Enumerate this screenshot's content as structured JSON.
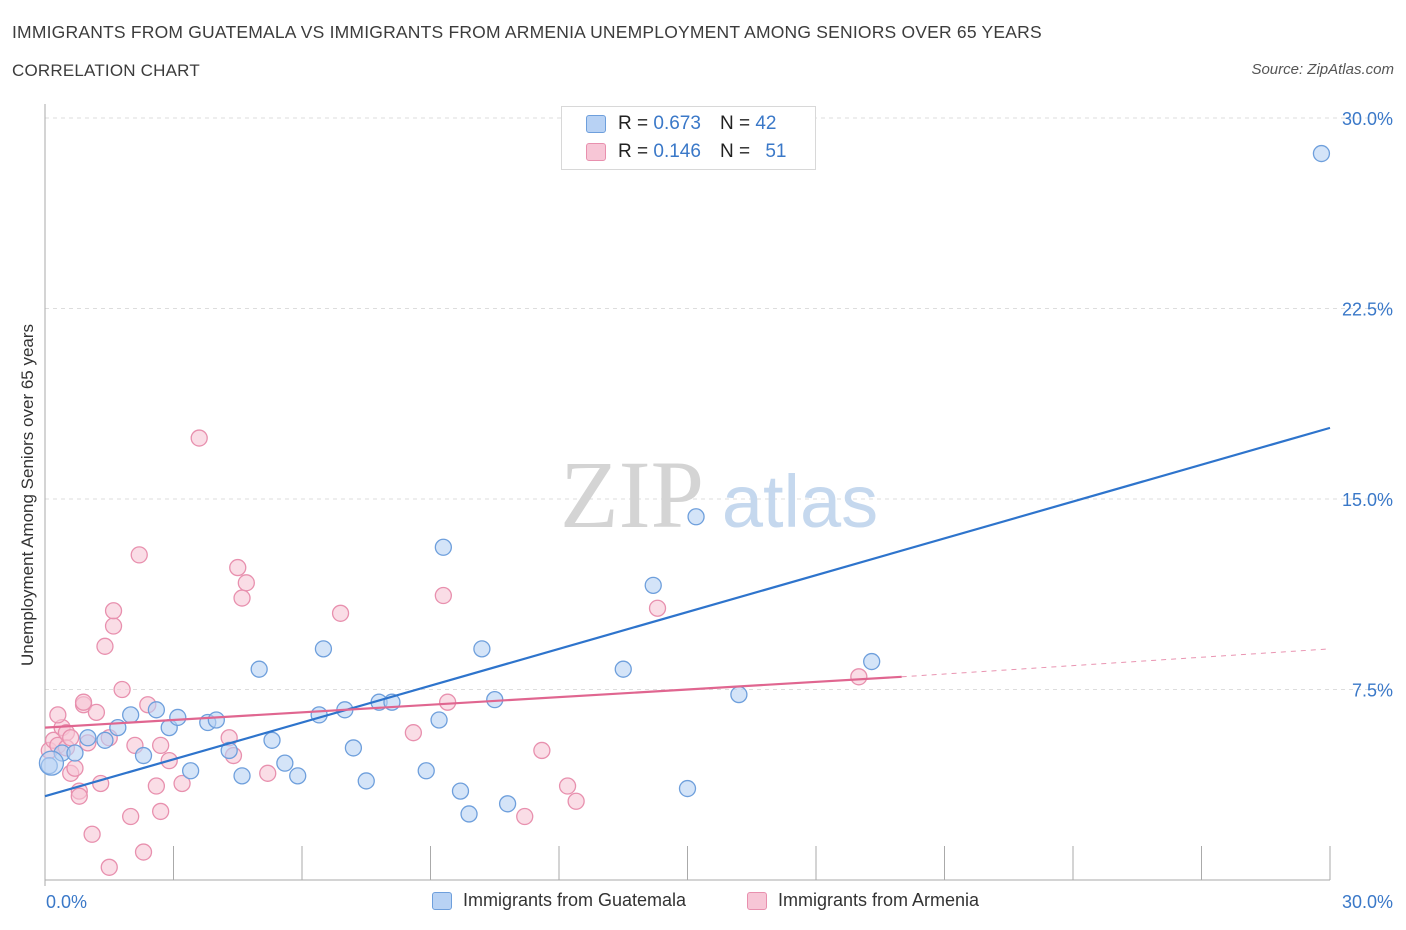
{
  "header": {
    "title": "IMMIGRANTS FROM GUATEMALA VS IMMIGRANTS FROM ARMENIA UNEMPLOYMENT AMONG SENIORS OVER 65 YEARS",
    "subtitle": "CORRELATION CHART",
    "source": "Source: ZipAtlas.com"
  },
  "legend": {
    "guatemala": {
      "r_label": "R =",
      "r_value": "0.673",
      "n_label": "N =",
      "n_value": "42"
    },
    "armenia": {
      "r_label": "R =",
      "r_value": "0.146",
      "n_label": "N =",
      "n_value": "51"
    }
  },
  "watermark": {
    "zip": "ZIP",
    "atlas": "atlas"
  },
  "colors": {
    "guatemala_fill": "#b8d2f4",
    "guatemala_stroke": "#6e9fdc",
    "guatemala_line": "#2e74cc",
    "armenia_fill": "#f7c6d6",
    "armenia_stroke": "#e890ae",
    "armenia_line": "#e06690",
    "axis_label": "#3a78c8",
    "grid": "#dddddd"
  },
  "chart_data": {
    "type": "scatter",
    "title": "IMMIGRANTS FROM GUATEMALA VS IMMIGRANTS FROM ARMENIA UNEMPLOYMENT AMONG SENIORS OVER 65 YEARS",
    "xlabel": "",
    "ylabel": "Unemployment Among Seniors over 65 years",
    "xlim": [
      0,
      30
    ],
    "ylim": [
      0,
      30
    ],
    "x_tick_labels": [
      "0.0%",
      "30.0%"
    ],
    "y_ticks": [
      7.5,
      15.0,
      22.5,
      30.0
    ],
    "y_tick_labels": [
      "7.5%",
      "15.0%",
      "22.5%",
      "30.0%"
    ],
    "grid": true,
    "series": [
      {
        "name": "Immigrants from Guatemala",
        "color": "#6e9fdc",
        "trend": {
          "x": [
            0,
            30
          ],
          "y": [
            3.3,
            17.8
          ],
          "extrapolated_to": null
        },
        "points": [
          [
            0.1,
            4.5
          ],
          [
            0.4,
            5.0
          ],
          [
            0.7,
            5.0
          ],
          [
            1.0,
            5.6
          ],
          [
            1.4,
            5.5
          ],
          [
            1.7,
            6.0
          ],
          [
            2.0,
            6.5
          ],
          [
            2.3,
            4.9
          ],
          [
            2.6,
            6.7
          ],
          [
            2.9,
            6.0
          ],
          [
            3.1,
            6.4
          ],
          [
            3.4,
            4.3
          ],
          [
            3.8,
            6.2
          ],
          [
            4.0,
            6.3
          ],
          [
            4.3,
            5.1
          ],
          [
            4.6,
            4.1
          ],
          [
            5.0,
            8.3
          ],
          [
            5.3,
            5.5
          ],
          [
            5.6,
            4.6
          ],
          [
            5.9,
            4.1
          ],
          [
            6.4,
            6.5
          ],
          [
            6.5,
            9.1
          ],
          [
            7.0,
            6.7
          ],
          [
            7.2,
            5.2
          ],
          [
            7.5,
            3.9
          ],
          [
            7.8,
            7.0
          ],
          [
            8.1,
            7.0
          ],
          [
            8.9,
            4.3
          ],
          [
            9.2,
            6.3
          ],
          [
            9.3,
            13.1
          ],
          [
            9.7,
            3.5
          ],
          [
            9.9,
            2.6
          ],
          [
            10.2,
            9.1
          ],
          [
            10.5,
            7.1
          ],
          [
            10.8,
            3.0
          ],
          [
            13.5,
            8.3
          ],
          [
            14.2,
            11.6
          ],
          [
            15.0,
            3.6
          ],
          [
            15.2,
            14.3
          ],
          [
            16.2,
            7.3
          ],
          [
            19.3,
            8.6
          ],
          [
            29.8,
            28.6
          ]
        ]
      },
      {
        "name": "Immigrants from Armenia",
        "color": "#e890ae",
        "trend": {
          "x": [
            0,
            20
          ],
          "y": [
            6.0,
            8.0
          ],
          "extrapolated_to": [
            30,
            9.1
          ]
        },
        "points": [
          [
            0.1,
            5.1
          ],
          [
            0.2,
            5.5
          ],
          [
            0.3,
            5.3
          ],
          [
            0.4,
            6.0
          ],
          [
            0.5,
            5.8
          ],
          [
            0.6,
            4.2
          ],
          [
            0.5,
            5.2
          ],
          [
            0.7,
            4.4
          ],
          [
            0.8,
            3.5
          ],
          [
            0.9,
            6.9
          ],
          [
            1.0,
            5.4
          ],
          [
            0.8,
            3.3
          ],
          [
            0.9,
            7.0
          ],
          [
            1.1,
            1.8
          ],
          [
            1.2,
            6.6
          ],
          [
            1.3,
            3.8
          ],
          [
            1.4,
            9.2
          ],
          [
            1.5,
            5.6
          ],
          [
            1.5,
            0.5
          ],
          [
            1.6,
            10.0
          ],
          [
            1.6,
            10.6
          ],
          [
            1.8,
            7.5
          ],
          [
            2.0,
            2.5
          ],
          [
            2.1,
            5.3
          ],
          [
            2.2,
            12.8
          ],
          [
            2.3,
            1.1
          ],
          [
            2.4,
            6.9
          ],
          [
            2.6,
            3.7
          ],
          [
            2.7,
            5.3
          ],
          [
            2.7,
            2.7
          ],
          [
            2.9,
            4.7
          ],
          [
            3.2,
            3.8
          ],
          [
            3.6,
            17.4
          ],
          [
            4.3,
            5.6
          ],
          [
            4.4,
            4.9
          ],
          [
            4.5,
            12.3
          ],
          [
            4.6,
            11.1
          ],
          [
            4.7,
            11.7
          ],
          [
            5.2,
            4.2
          ],
          [
            6.9,
            10.5
          ],
          [
            8.6,
            5.8
          ],
          [
            9.3,
            11.2
          ],
          [
            9.4,
            7.0
          ],
          [
            11.2,
            2.5
          ],
          [
            11.6,
            5.1
          ],
          [
            12.2,
            3.7
          ],
          [
            12.4,
            3.1
          ],
          [
            14.3,
            10.7
          ],
          [
            19.0,
            8.0
          ],
          [
            0.3,
            6.5
          ],
          [
            0.6,
            5.6
          ]
        ]
      }
    ]
  },
  "bottom_legend": {
    "guatemala": "Immigrants from Guatemala",
    "armenia": "Immigrants from Armenia"
  }
}
